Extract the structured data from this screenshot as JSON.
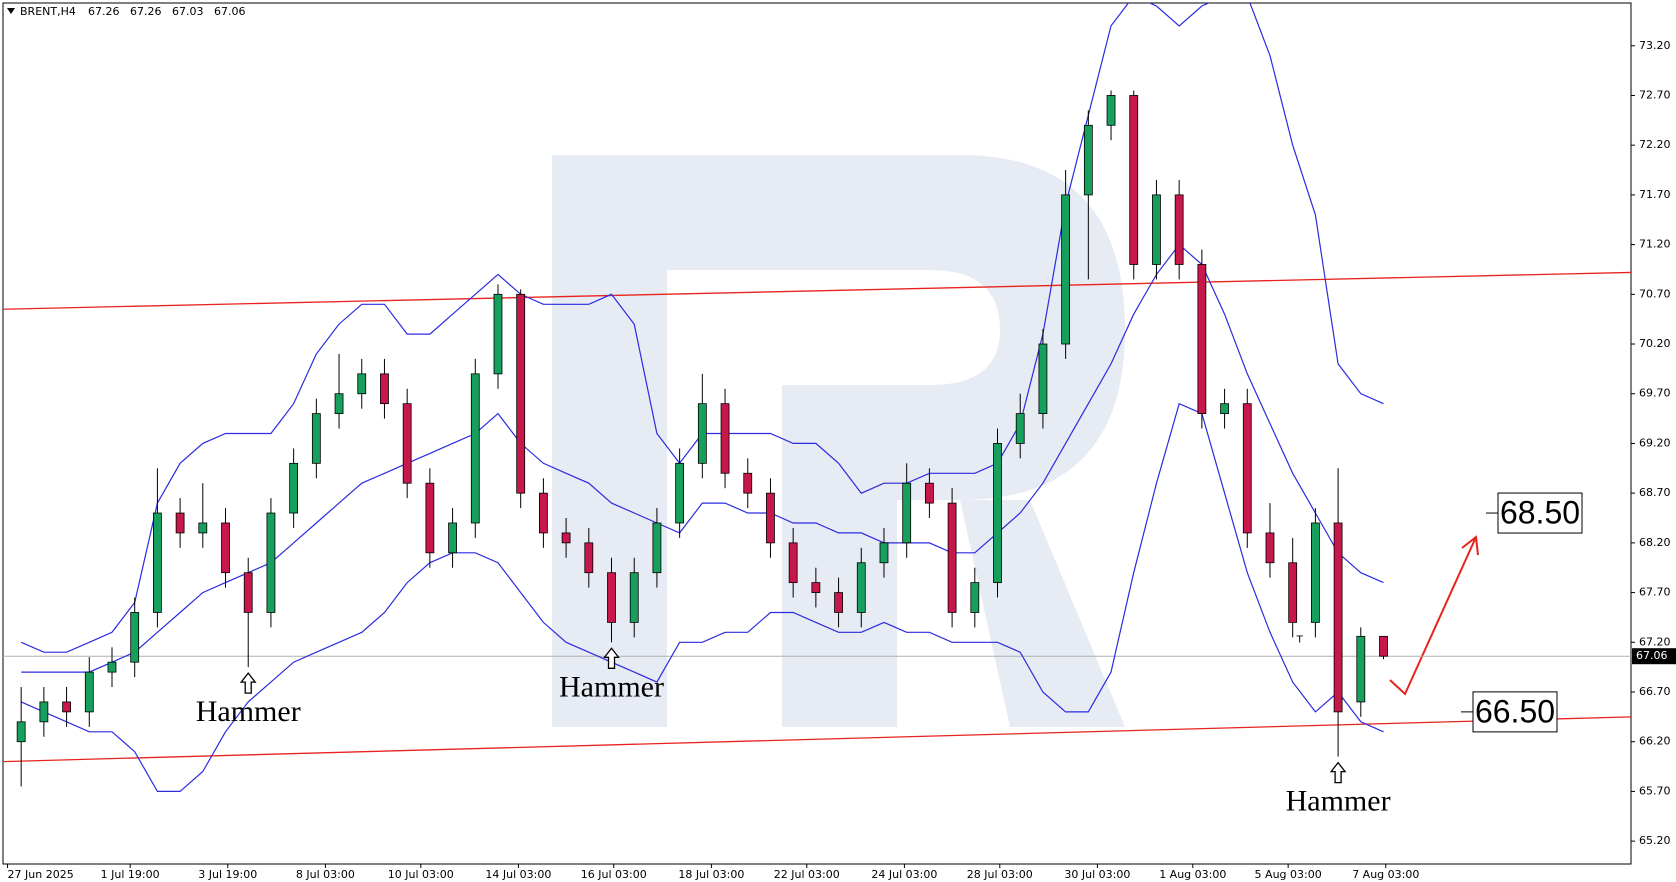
{
  "chart_data": {
    "type": "candlestick",
    "symbol": "BRENT,H4",
    "open": [
      66.2,
      66.4,
      66.6,
      66.5,
      66.9,
      67.0,
      67.5,
      68.5,
      68.3,
      68.4,
      67.9,
      67.5,
      68.5,
      69.0,
      69.5,
      69.7,
      69.9,
      69.6,
      68.8,
      68.1,
      68.4,
      69.9,
      70.7,
      68.7,
      68.3,
      68.2,
      67.9,
      67.4,
      67.9,
      68.4,
      69.0,
      69.6,
      68.9,
      68.7,
      68.2,
      67.8,
      67.7,
      67.5,
      68.0,
      68.2,
      68.8,
      68.6,
      67.5,
      67.8,
      69.2,
      69.5,
      70.2,
      71.7,
      72.4,
      72.7,
      71.0,
      71.7,
      71.0,
      69.5,
      69.6,
      68.3,
      68.0,
      67.4,
      68.4,
      66.6,
      67.26
    ],
    "high": [
      66.75,
      66.75,
      66.75,
      67.05,
      67.15,
      67.65,
      68.95,
      68.65,
      68.8,
      68.55,
      68.05,
      68.65,
      69.15,
      69.65,
      70.1,
      70.05,
      70.05,
      69.75,
      68.95,
      68.55,
      70.05,
      70.8,
      70.75,
      68.85,
      68.45,
      68.35,
      68.05,
      68.05,
      68.55,
      69.15,
      69.9,
      69.75,
      69.05,
      68.85,
      68.35,
      67.95,
      67.85,
      68.15,
      68.35,
      69.0,
      68.95,
      68.75,
      67.95,
      69.35,
      69.7,
      70.35,
      71.95,
      72.55,
      72.75,
      72.75,
      71.85,
      71.85,
      71.15,
      69.75,
      69.75,
      68.6,
      68.25,
      68.55,
      68.95,
      67.35,
      67.26
    ],
    "low": [
      65.75,
      66.25,
      66.35,
      66.35,
      66.75,
      66.85,
      67.35,
      68.15,
      68.15,
      67.75,
      66.95,
      67.35,
      68.35,
      68.85,
      69.35,
      69.55,
      69.45,
      68.65,
      67.95,
      67.95,
      68.25,
      69.75,
      68.55,
      68.15,
      68.05,
      67.75,
      67.2,
      67.25,
      67.75,
      68.25,
      68.85,
      68.75,
      68.55,
      68.05,
      67.65,
      67.55,
      67.35,
      67.35,
      67.85,
      68.05,
      68.45,
      67.35,
      67.35,
      67.65,
      69.05,
      69.35,
      70.05,
      70.85,
      72.25,
      70.85,
      70.85,
      70.85,
      69.35,
      69.35,
      68.15,
      67.85,
      67.25,
      67.25,
      66.05,
      66.45,
      67.03
    ],
    "close": [
      66.4,
      66.6,
      66.5,
      66.9,
      67.0,
      67.5,
      68.5,
      68.3,
      68.4,
      67.9,
      67.5,
      68.5,
      69.0,
      69.5,
      69.7,
      69.9,
      69.6,
      68.8,
      68.1,
      68.4,
      69.9,
      70.7,
      68.7,
      68.3,
      68.2,
      67.9,
      67.4,
      67.9,
      68.4,
      69.0,
      69.6,
      68.9,
      68.7,
      68.2,
      67.8,
      67.7,
      67.5,
      68.0,
      68.2,
      68.8,
      68.6,
      67.5,
      67.8,
      69.2,
      69.5,
      70.2,
      71.7,
      72.4,
      72.7,
      71.0,
      71.7,
      71.0,
      69.5,
      69.6,
      68.3,
      68.0,
      67.4,
      68.4,
      66.5,
      67.26,
      67.06
    ],
    "up_color": "#17a05d",
    "down_color": "#c8174b",
    "bands": {
      "color": "#2b2be0",
      "upper": [
        67.2,
        67.1,
        67.1,
        67.2,
        67.3,
        67.6,
        68.6,
        69.0,
        69.2,
        69.3,
        69.3,
        69.3,
        69.6,
        70.1,
        70.4,
        70.6,
        70.6,
        70.3,
        70.3,
        70.5,
        70.7,
        70.9,
        70.7,
        70.6,
        70.6,
        70.6,
        70.7,
        70.4,
        69.3,
        69.0,
        69.3,
        69.3,
        69.3,
        69.3,
        69.2,
        69.2,
        69.0,
        68.7,
        68.8,
        68.8,
        68.9,
        68.9,
        68.9,
        69.0,
        69.4,
        70.3,
        71.6,
        72.5,
        73.4,
        73.7,
        73.6,
        73.4,
        73.6,
        73.7,
        73.7,
        73.1,
        72.2,
        71.5,
        70.0,
        69.7,
        69.6
      ],
      "middle": [
        66.9,
        66.9,
        66.9,
        66.9,
        67.0,
        67.1,
        67.3,
        67.5,
        67.7,
        67.8,
        67.9,
        68.0,
        68.2,
        68.4,
        68.6,
        68.8,
        68.9,
        69.0,
        69.1,
        69.2,
        69.3,
        69.5,
        69.2,
        69.0,
        68.9,
        68.8,
        68.6,
        68.5,
        68.4,
        68.3,
        68.6,
        68.6,
        68.5,
        68.5,
        68.4,
        68.4,
        68.3,
        68.3,
        68.2,
        68.2,
        68.2,
        68.1,
        68.1,
        68.3,
        68.5,
        68.8,
        69.2,
        69.6,
        70.0,
        70.5,
        70.9,
        71.2,
        71.0,
        70.5,
        69.9,
        69.4,
        68.9,
        68.5,
        68.1,
        67.9,
        67.8
      ],
      "lower": [
        66.6,
        66.5,
        66.4,
        66.3,
        66.3,
        66.1,
        65.7,
        65.7,
        65.9,
        66.3,
        66.6,
        66.8,
        67.0,
        67.1,
        67.2,
        67.3,
        67.5,
        67.8,
        68.0,
        68.1,
        68.1,
        68.0,
        67.7,
        67.4,
        67.2,
        67.1,
        67.0,
        66.9,
        66.8,
        67.2,
        67.2,
        67.3,
        67.3,
        67.5,
        67.5,
        67.4,
        67.3,
        67.3,
        67.4,
        67.3,
        67.3,
        67.2,
        67.2,
        67.2,
        67.1,
        66.7,
        66.5,
        66.5,
        66.9,
        67.9,
        68.8,
        69.6,
        69.5,
        68.7,
        67.9,
        67.3,
        66.8,
        66.5,
        66.7,
        66.4,
        66.3
      ]
    },
    "trend_lines": [
      {
        "start": 70.55,
        "end": 70.92,
        "color": "#e8231e"
      },
      {
        "start": 66.0,
        "end": 66.45,
        "color": "#e8231e"
      }
    ],
    "price_line_color": "#b0b0b0",
    "hammer_labels": [
      "Hammer",
      "Hammer",
      "Hammer"
    ],
    "small_mark": "T",
    "targets": [
      {
        "value": 68.5,
        "label": "68.50"
      },
      {
        "value": 66.5,
        "label": "66.50"
      }
    ],
    "arrow_color": "#e8231e",
    "xlim": [
      -0.8,
      70.9
    ],
    "ylim": [
      64.97,
      73.63
    ],
    "xticks": [
      {
        "value": -0.6,
        "label": "27 Jun 2025"
      },
      {
        "value": 4.8,
        "label": "1 Jul 19:00"
      },
      {
        "value": 9.1,
        "label": "3 Jul 19:00"
      },
      {
        "value": 13.4,
        "label": "8 Jul 03:00"
      },
      {
        "value": 17.6,
        "label": "10 Jul 03:00"
      },
      {
        "value": 21.9,
        "label": "14 Jul 03:00"
      },
      {
        "value": 26.1,
        "label": "16 Jul 03:00"
      },
      {
        "value": 30.4,
        "label": "18 Jul 03:00"
      },
      {
        "value": 34.6,
        "label": "22 Jul 03:00"
      },
      {
        "value": 38.9,
        "label": "24 Jul 03:00"
      },
      {
        "value": 43.1,
        "label": "28 Jul 03:00"
      },
      {
        "value": 47.4,
        "label": "30 Jul 03:00"
      },
      {
        "value": 51.6,
        "label": "1 Aug 03:00"
      },
      {
        "value": 55.8,
        "label": "5 Aug 03:00"
      },
      {
        "value": 60.1,
        "label": "7 Aug 03:00"
      }
    ],
    "yticks": [
      {
        "value": 65.2,
        "label": "65.20"
      },
      {
        "value": 65.7,
        "label": "65.70"
      },
      {
        "value": 66.2,
        "label": "66.20"
      },
      {
        "value": 66.7,
        "label": "66.70"
      },
      {
        "value": 67.2,
        "label": "67.20"
      },
      {
        "value": 67.7,
        "label": "67.70"
      },
      {
        "value": 68.2,
        "label": "68.20"
      },
      {
        "value": 68.7,
        "label": "68.70"
      },
      {
        "value": 69.2,
        "label": "69.20"
      },
      {
        "value": 69.7,
        "label": "69.70"
      },
      {
        "value": 70.2,
        "label": "70.20"
      },
      {
        "value": 70.7,
        "label": "70.70"
      },
      {
        "value": 71.2,
        "label": "71.20"
      },
      {
        "value": 71.7,
        "label": "71.70"
      },
      {
        "value": 72.2,
        "label": "72.20"
      },
      {
        "value": 72.7,
        "label": "72.70"
      },
      {
        "value": 73.2,
        "label": "73.20"
      }
    ]
  }
}
